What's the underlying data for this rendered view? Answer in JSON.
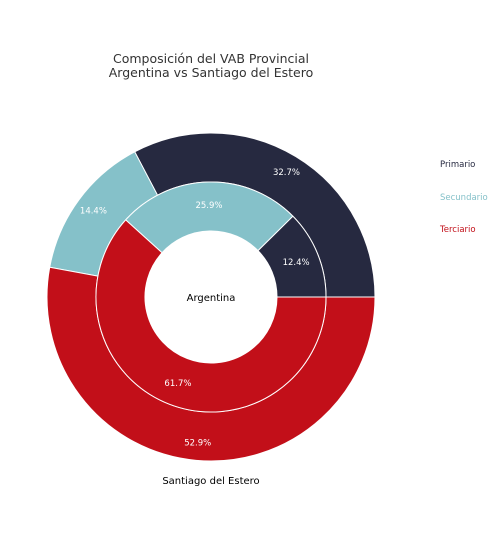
{
  "chart_data": {
    "type": "pie",
    "title": "Composición del VAB Provincial",
    "subtitle": "Argentina vs Santiago del Estero",
    "categories": [
      "Primario",
      "Secundario",
      "Terciario"
    ],
    "colors": [
      "#262940",
      "#85C1C9",
      "#C20F19"
    ],
    "rings": [
      {
        "ring": "inner",
        "name": "Argentina",
        "values": [
          12.4,
          25.9,
          61.7
        ],
        "labels": [
          "12.4%",
          "25.9%",
          "61.7%"
        ]
      },
      {
        "ring": "outer",
        "name": "Santiago del Estero",
        "values": [
          32.7,
          14.4,
          52.9
        ],
        "labels": [
          "32.7%",
          "14.4%",
          "52.9%"
        ]
      }
    ],
    "legend": {
      "position": "right",
      "items": [
        "Primario",
        "Secundario",
        "Terciario"
      ]
    }
  }
}
